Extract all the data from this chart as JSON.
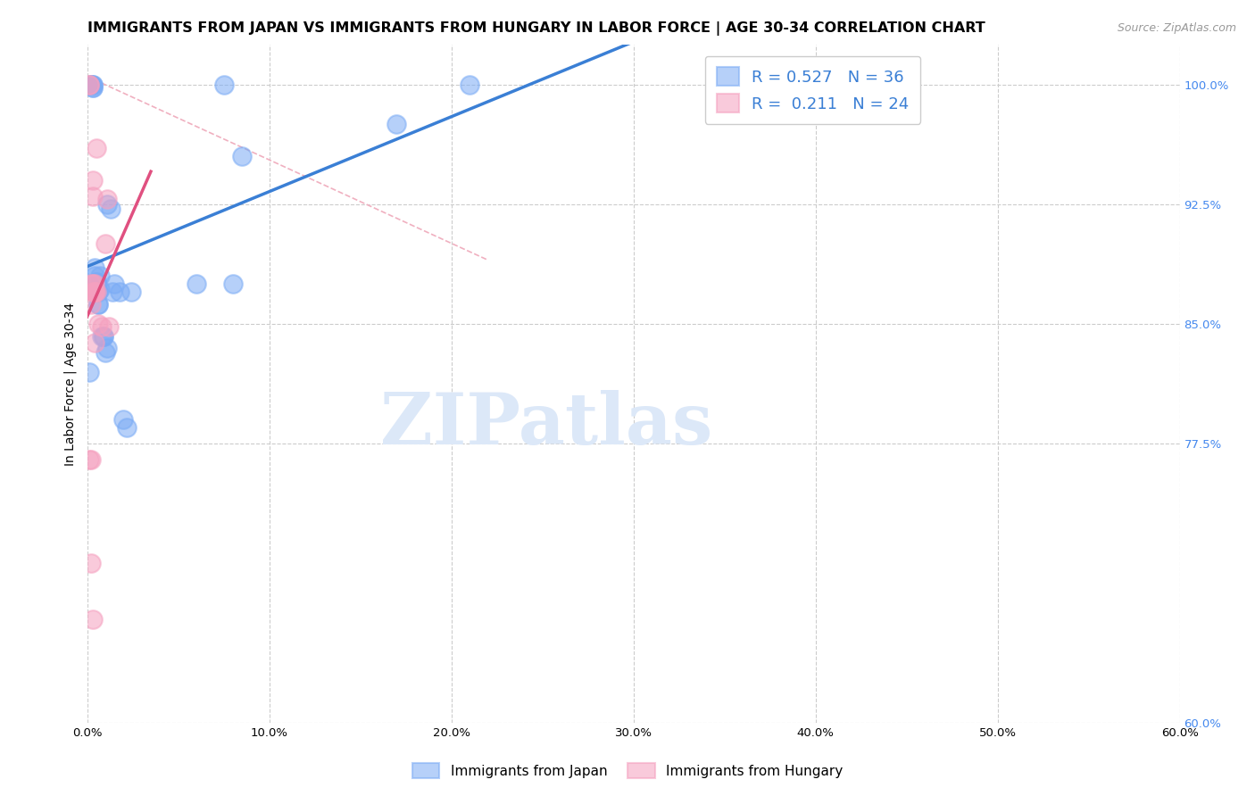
{
  "title": "IMMIGRANTS FROM JAPAN VS IMMIGRANTS FROM HUNGARY IN LABOR FORCE | AGE 30-34 CORRELATION CHART",
  "source": "Source: ZipAtlas.com",
  "ylabel": "In Labor Force | Age 30-34",
  "xlim": [
    0.0,
    0.6
  ],
  "ylim": [
    0.6,
    1.025
  ],
  "xtick_vals": [
    0.0,
    0.1,
    0.2,
    0.3,
    0.4,
    0.5,
    0.6
  ],
  "xtick_labels": [
    "0.0%",
    "10.0%",
    "20.0%",
    "30.0%",
    "40.0%",
    "50.0%",
    "60.0%"
  ],
  "ytick_vals": [
    0.6,
    0.775,
    0.85,
    0.925,
    1.0
  ],
  "ytick_labels": [
    "60.0%",
    "77.5%",
    "85.0%",
    "92.5%",
    "100.0%"
  ],
  "japan_color": "#7aabf5",
  "hungary_color": "#f5a0bf",
  "japan_R": "0.527",
  "japan_N": "36",
  "hungary_R": "0.211",
  "hungary_N": "24",
  "japan_x": [
    0.001,
    0.002,
    0.002,
    0.003,
    0.003,
    0.003,
    0.003,
    0.004,
    0.004,
    0.005,
    0.005,
    0.005,
    0.006,
    0.006,
    0.006,
    0.007,
    0.007,
    0.008,
    0.009,
    0.009,
    0.01,
    0.011,
    0.011,
    0.013,
    0.014,
    0.015,
    0.018,
    0.02,
    0.022,
    0.024,
    0.06,
    0.075,
    0.08,
    0.085,
    0.17,
    0.21
  ],
  "japan_y": [
    0.82,
    1.0,
    1.0,
    1.0,
    1.0,
    0.998,
    0.998,
    0.885,
    0.88,
    0.876,
    0.876,
    0.872,
    0.862,
    0.862,
    0.87,
    0.88,
    0.872,
    0.842,
    0.842,
    0.842,
    0.832,
    0.835,
    0.925,
    0.922,
    0.87,
    0.875,
    0.87,
    0.79,
    0.785,
    0.87,
    0.875,
    1.0,
    0.875,
    0.955,
    0.975,
    1.0
  ],
  "hungary_x": [
    0.001,
    0.001,
    0.001,
    0.002,
    0.002,
    0.002,
    0.002,
    0.003,
    0.003,
    0.003,
    0.003,
    0.003,
    0.004,
    0.004,
    0.004,
    0.004,
    0.004,
    0.005,
    0.005,
    0.006,
    0.008,
    0.01,
    0.011,
    0.012
  ],
  "hungary_y": [
    1.0,
    1.0,
    0.765,
    0.765,
    0.7,
    0.875,
    0.862,
    0.665,
    0.94,
    0.93,
    0.875,
    0.87,
    0.875,
    0.838,
    0.87,
    0.87,
    0.87,
    0.87,
    0.96,
    0.85,
    0.848,
    0.9,
    0.928,
    0.848
  ],
  "background_color": "#ffffff",
  "grid_color": "#cccccc",
  "japan_line_color": "#3a7fd5",
  "hungary_line_color": "#e05080",
  "diag_color": "#f0b0c0",
  "watermark_text": "ZIPatlas",
  "watermark_color": "#dce8f8",
  "title_fontsize": 11.5,
  "label_fontsize": 10,
  "tick_fontsize": 9.5,
  "legend_fontsize": 13
}
